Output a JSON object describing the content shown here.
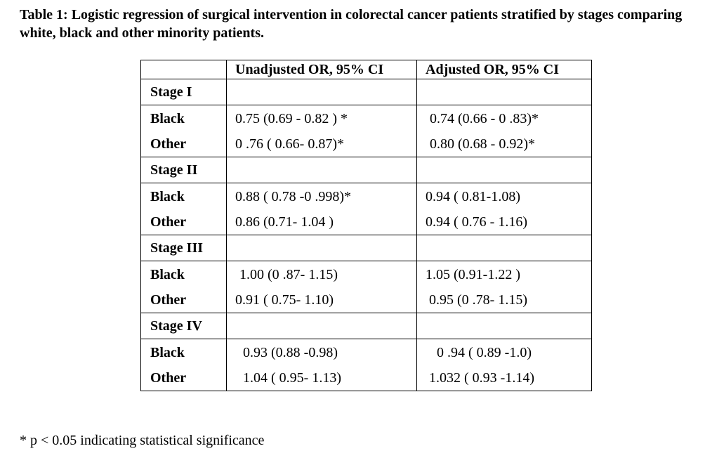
{
  "caption": "Table 1: Logistic regression of surgical intervention in colorectal cancer patients stratified by stages comparing white, black and other minority patients.",
  "table": {
    "headers": [
      "",
      "Unadjusted OR, 95% CI",
      "Adjusted OR, 95% CI"
    ],
    "stages": [
      {
        "label": "Stage I",
        "rows": [
          {
            "group": "Black",
            "unadjusted": "0.75 (0.69 - 0.82 ) *",
            "adjusted": "0.74 (0.66 - 0 .83)*"
          },
          {
            "group": "Other",
            "unadjusted": "0 .76 ( 0.66- 0.87)*",
            "adjusted": "0.80 (0.68  -  0.92)*"
          }
        ]
      },
      {
        "label": "Stage II",
        "rows": [
          {
            "group": "Black",
            "unadjusted": "0.88 ( 0.78 -0 .998)*",
            "adjusted": "0.94 ( 0.81-1.08)"
          },
          {
            "group": "Other",
            "unadjusted": "0.86 (0.71- 1.04 )",
            "adjusted": "0.94 ( 0.76 - 1.16)"
          }
        ]
      },
      {
        "label": "Stage III",
        "rows": [
          {
            "group": "Black",
            "unadjusted": " 1.00 (0 .87- 1.15)",
            "adjusted": "1.05 (0.91-1.22 )"
          },
          {
            "group": "Other",
            "unadjusted": "0.91 ( 0.75- 1.10)",
            "adjusted": " 0.95 (0 .78- 1.15)"
          }
        ]
      },
      {
        "label": "Stage IV",
        "rows": [
          {
            "group": "Black",
            "unadjusted": "  0.93 (0.88 -0.98)",
            "adjusted": "  0 .94 ( 0.89 -1.0)"
          },
          {
            "group": "Other",
            "unadjusted": "  1.04 ( 0.95- 1.13)",
            "adjusted": " 1.032 ( 0.93 -1.14)"
          }
        ]
      }
    ]
  },
  "footnote": "* p < 0.05 indicating statistical significance"
}
